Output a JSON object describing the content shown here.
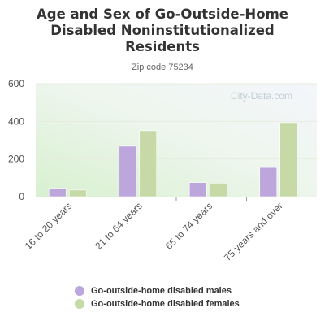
{
  "header": {
    "title_lines": [
      "Age and Sex of Go-Outside-Home",
      "Disabled Noninstitutionalized",
      "Residents"
    ],
    "subtitle": "Zip code 75234"
  },
  "watermark": "City-Data.com",
  "colors": {
    "males": "#bca6dc",
    "females": "#c6d9a6",
    "axis_text": "#555555",
    "grid": "#e6ece0"
  },
  "chart_data": {
    "type": "bar",
    "categories": [
      "16 to 20 years",
      "21 to 64 years",
      "65 to 74 years",
      "75 years and over"
    ],
    "series": [
      {
        "name": "Go-outside-home disabled males",
        "values": [
          45,
          268,
          75,
          155
        ]
      },
      {
        "name": "Go-outside-home disabled females",
        "values": [
          35,
          350,
          72,
          393
        ]
      }
    ],
    "yticks": [
      0,
      200,
      400,
      600
    ],
    "ylim": [
      0,
      600
    ],
    "grid": true,
    "legend": "bottom"
  }
}
